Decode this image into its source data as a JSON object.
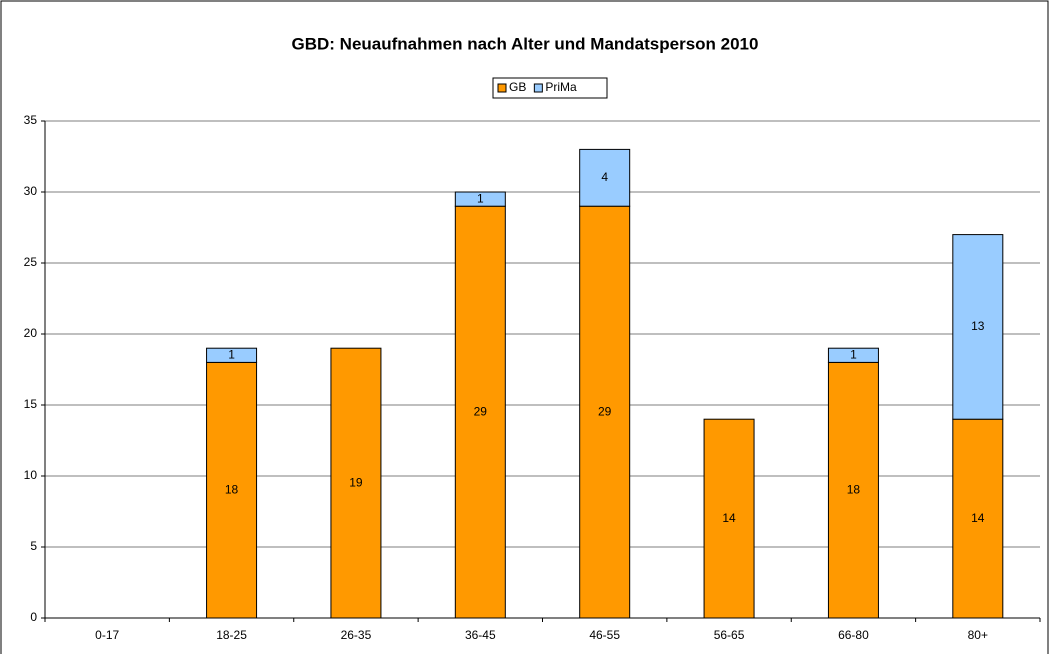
{
  "chart_data": {
    "type": "stacked_bar",
    "title": "GBD: Neuaufnahmen nach Alter und Mandatsperson 2010",
    "categories": [
      "0-17",
      "18-25",
      "26-35",
      "36-45",
      "46-55",
      "56-65",
      "66-80",
      "80+"
    ],
    "series": [
      {
        "name": "GB",
        "color": "#ff9900",
        "values": [
          0,
          18,
          19,
          29,
          29,
          14,
          18,
          14
        ]
      },
      {
        "name": "PriMa",
        "color": "#99ccff",
        "values": [
          0,
          1,
          0,
          1,
          4,
          0,
          1,
          13
        ]
      }
    ],
    "ylim": [
      0,
      35
    ],
    "yticks": [
      0,
      5,
      10,
      15,
      20,
      25,
      30,
      35
    ],
    "grid": true,
    "legend": "top"
  }
}
